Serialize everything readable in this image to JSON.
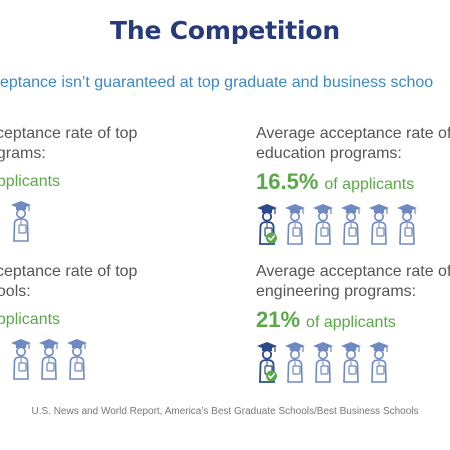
{
  "title": "The Competition",
  "subtitle": "cceptance isn’t guaranteed at top graduate and business schoo",
  "panels": {
    "top_left": {
      "line1": "cceptance rate of top",
      "line2": "ograms:",
      "stat": "applicants",
      "icons": [
        {
          "type": "outline"
        }
      ]
    },
    "top_right": {
      "line1": "Average acceptance rate of t",
      "line2": "education programs:",
      "stat_pct": "16.5%",
      "stat_text": "of applicants",
      "icons": [
        {
          "type": "accepted"
        },
        {
          "type": "outline"
        },
        {
          "type": "outline"
        },
        {
          "type": "outline"
        },
        {
          "type": "outline"
        },
        {
          "type": "outline"
        }
      ]
    },
    "bottom_left": {
      "line1": "cceptance rate of top",
      "line2": "hools:",
      "stat": "applicants",
      "icons": [
        {
          "type": "outline"
        },
        {
          "type": "outline"
        },
        {
          "type": "outline"
        }
      ]
    },
    "bottom_right": {
      "line1": "Average acceptance rate of t",
      "line2": "engineering programs:",
      "stat_pct": "21%",
      "stat_text": "of applicants",
      "icons": [
        {
          "type": "accepted"
        },
        {
          "type": "outline"
        },
        {
          "type": "outline"
        },
        {
          "type": "outline"
        },
        {
          "type": "outline"
        }
      ]
    }
  },
  "source": "U.S. News and World Report, America’s Best Graduate Schools/Best Business Schools",
  "colors": {
    "title": "#273a7a",
    "subtitle": "#3b88c8",
    "green": "#58a947",
    "icon_outline": "#6f8ac2",
    "icon_accepted": "#2c4a8a"
  }
}
